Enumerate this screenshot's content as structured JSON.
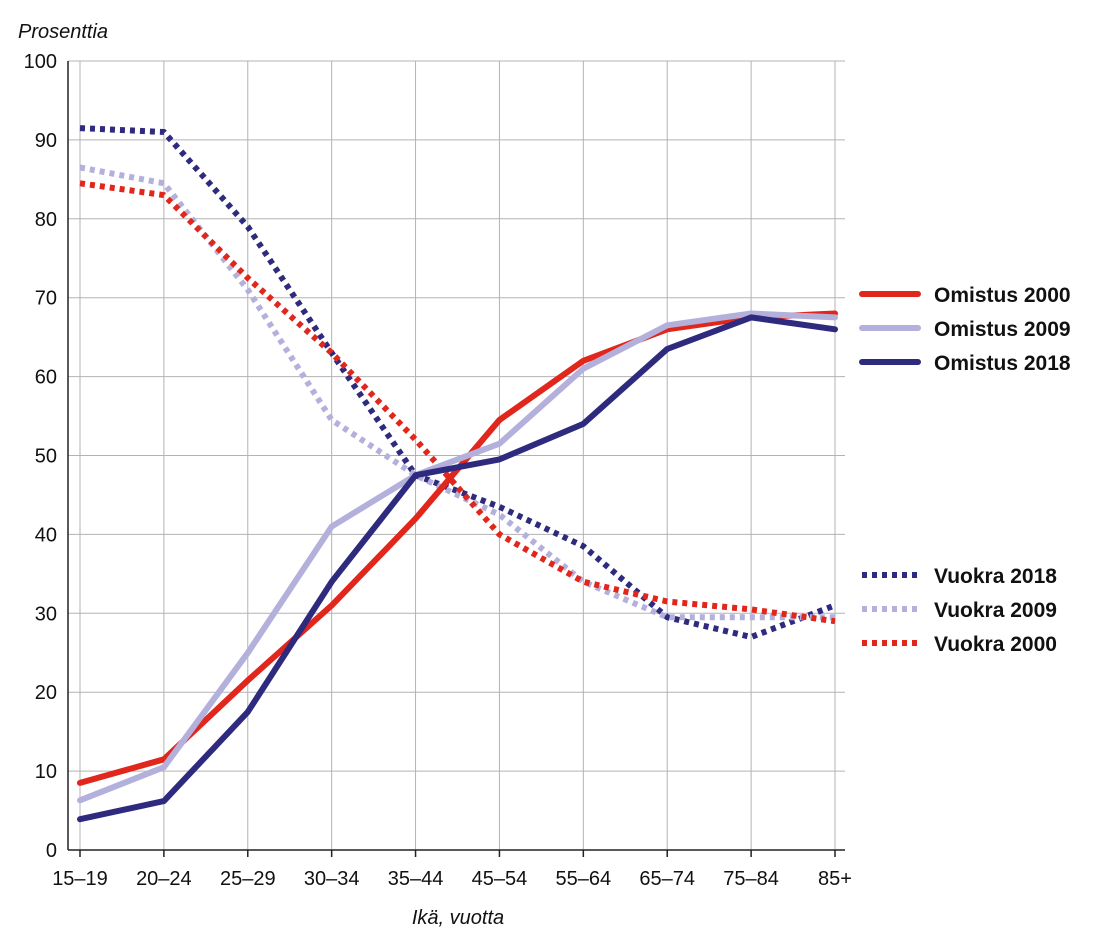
{
  "chart_data": {
    "type": "line",
    "title": "",
    "ylabel": "Prosenttia",
    "xlabel": "Ikä, vuotta",
    "ylim": [
      0,
      100
    ],
    "yticks": [
      0,
      10,
      20,
      30,
      40,
      50,
      60,
      70,
      80,
      90,
      100
    ],
    "grid": true,
    "legend_placement": "right",
    "categories": [
      "15–19",
      "20–24",
      "25–29",
      "30–34",
      "35–44",
      "45–54",
      "55–64",
      "65–74",
      "75–84",
      "85+"
    ],
    "series": [
      {
        "name": "Omistus 2000",
        "style": "solid",
        "color": "#e1261c",
        "values": [
          8.5,
          11.5,
          21.5,
          31,
          42,
          54.5,
          62,
          66,
          67.5,
          68
        ]
      },
      {
        "name": "Omistus 2009",
        "style": "solid",
        "color": "#b4b0dc",
        "values": [
          6.3,
          10.5,
          25,
          41,
          47.5,
          51.5,
          61,
          66.5,
          68,
          67.5
        ]
      },
      {
        "name": "Omistus 2018",
        "style": "solid",
        "color": "#2e2a7e",
        "values": [
          3.9,
          6.2,
          17.5,
          34,
          47.5,
          49.5,
          54,
          63.5,
          67.5,
          66
        ]
      },
      {
        "name": "Vuokra 2018",
        "style": "dotted",
        "color": "#2e2a7e",
        "values": [
          91.5,
          91,
          79,
          63,
          47.5,
          43.5,
          38.5,
          29.5,
          27,
          31
        ]
      },
      {
        "name": "Vuokra 2009",
        "style": "dotted",
        "color": "#b4b0dc",
        "values": [
          86.5,
          84.5,
          71,
          54.5,
          47.5,
          42.5,
          34,
          29.5,
          29.5,
          29.5
        ]
      },
      {
        "name": "Vuokra 2000",
        "style": "dotted",
        "color": "#e1261c",
        "values": [
          84.5,
          83,
          72.5,
          63,
          52,
          40,
          34,
          31.5,
          30.5,
          29
        ]
      }
    ],
    "legend": {
      "solid_group": [
        "Omistus 2000",
        "Omistus 2009",
        "Omistus 2018"
      ],
      "dotted_group": [
        "Vuokra 2018",
        "Vuokra 2009",
        "Vuokra 2000"
      ]
    }
  }
}
